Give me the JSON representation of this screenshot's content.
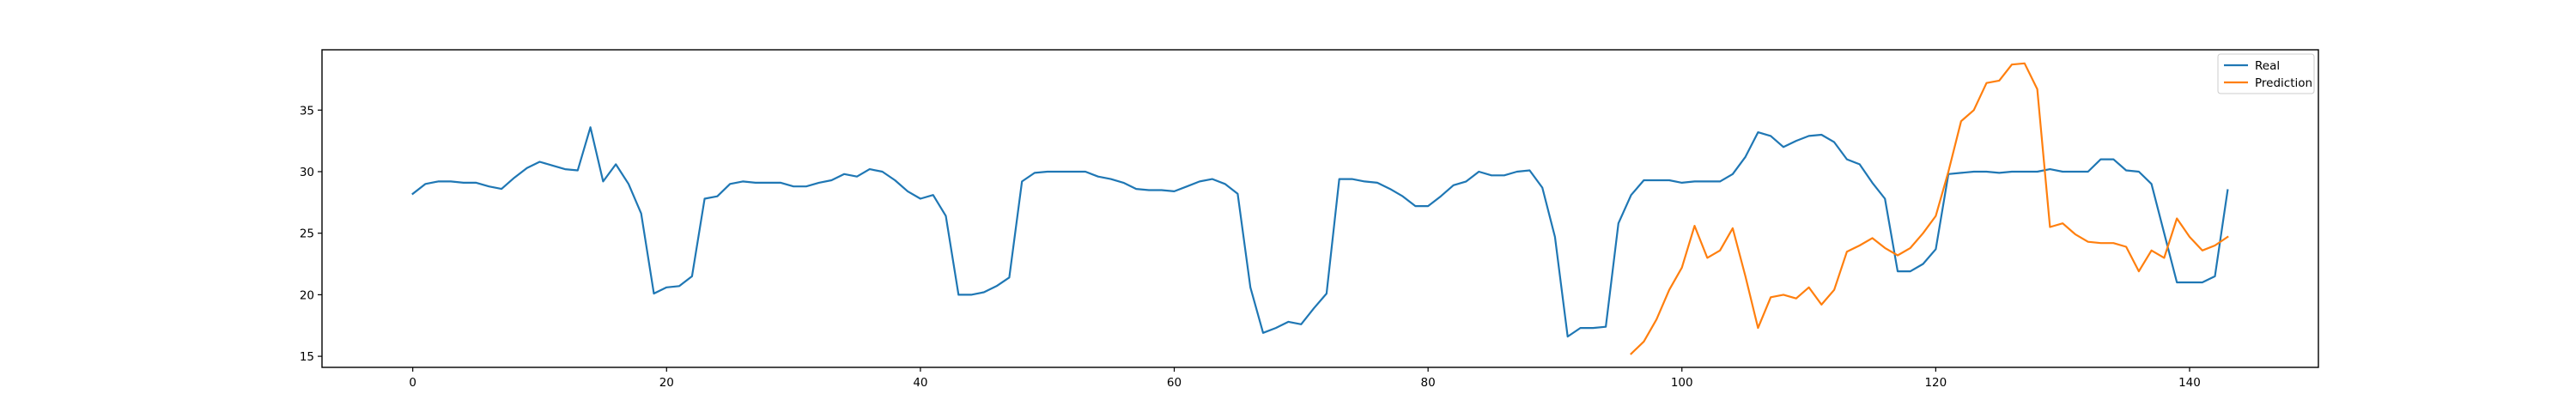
{
  "chart_data": {
    "type": "line",
    "title": "",
    "xlabel": "",
    "ylabel": "",
    "xlim": [
      -7.15,
      150.15
    ],
    "ylim": [
      14.1,
      39.9
    ],
    "xticks": [
      0,
      20,
      40,
      60,
      80,
      100,
      120,
      140
    ],
    "yticks": [
      15,
      20,
      25,
      30,
      35
    ],
    "grid": false,
    "legend_position": "upper right",
    "series": [
      {
        "name": "Real",
        "color": "#1f77b4",
        "x": [
          0,
          1,
          2,
          3,
          4,
          5,
          6,
          7,
          8,
          9,
          10,
          11,
          12,
          13,
          14,
          15,
          16,
          17,
          18,
          19,
          20,
          21,
          22,
          23,
          24,
          25,
          26,
          27,
          28,
          29,
          30,
          31,
          32,
          33,
          34,
          35,
          36,
          37,
          38,
          39,
          40,
          41,
          42,
          43,
          44,
          45,
          46,
          47,
          48,
          49,
          50,
          51,
          52,
          53,
          54,
          55,
          56,
          57,
          58,
          59,
          60,
          61,
          62,
          63,
          64,
          65,
          66,
          67,
          68,
          69,
          70,
          71,
          72,
          73,
          74,
          75,
          76,
          77,
          78,
          79,
          80,
          81,
          82,
          83,
          84,
          85,
          86,
          87,
          88,
          89,
          90,
          91,
          92,
          93,
          94,
          95,
          96,
          97,
          98,
          99,
          100,
          101,
          102,
          103,
          104,
          105,
          106,
          107,
          108,
          109,
          110,
          111,
          112,
          113,
          114,
          115,
          116,
          117,
          118,
          119,
          120,
          121,
          122,
          123,
          124,
          125,
          126,
          127,
          128,
          129,
          130,
          131,
          132,
          133,
          134,
          135,
          136,
          137,
          138,
          139,
          140,
          141,
          142,
          143
        ],
        "values": [
          28.2,
          29.0,
          29.2,
          29.2,
          29.1,
          29.1,
          28.8,
          28.6,
          29.5,
          30.3,
          30.8,
          30.5,
          30.2,
          30.1,
          33.6,
          29.2,
          30.6,
          29.0,
          26.6,
          20.1,
          20.6,
          20.7,
          21.5,
          27.8,
          28.0,
          29.0,
          29.2,
          29.1,
          29.1,
          29.1,
          28.8,
          28.8,
          29.1,
          29.3,
          29.8,
          29.6,
          30.2,
          30.0,
          29.3,
          28.4,
          27.8,
          28.1,
          26.4,
          20.0,
          20.0,
          20.2,
          20.7,
          21.4,
          29.2,
          29.9,
          30.0,
          30.0,
          30.0,
          30.0,
          29.6,
          29.4,
          29.1,
          28.6,
          28.5,
          28.5,
          28.4,
          28.8,
          29.2,
          29.4,
          29.0,
          28.2,
          20.6,
          16.9,
          17.3,
          17.8,
          17.6,
          18.9,
          20.1,
          29.4,
          29.4,
          29.2,
          29.1,
          28.6,
          28.0,
          27.2,
          27.2,
          28.0,
          28.9,
          29.2,
          30.0,
          29.7,
          29.7,
          30.0,
          30.1,
          28.7,
          24.7,
          16.6,
          17.3,
          17.3,
          17.4,
          25.8,
          28.1,
          29.3,
          29.3,
          29.3,
          29.1,
          29.2,
          29.2,
          29.2,
          29.8,
          31.2,
          33.2,
          32.9,
          32.0,
          32.5,
          32.9,
          33.0,
          32.4,
          31.0,
          30.6,
          29.1,
          27.8,
          21.9,
          21.9,
          22.5,
          23.7,
          29.8,
          29.9,
          30.0,
          30.0,
          29.9,
          30.0,
          30.0,
          30.0,
          30.2,
          30.0,
          30.0,
          30.0,
          31.0,
          31.0,
          30.1,
          30.0,
          29.0,
          25.0,
          21.0,
          21.0,
          21.0,
          21.5,
          28.5
        ]
      },
      {
        "name": "Prediction",
        "color": "#ff7f0e",
        "x": [
          96,
          97,
          98,
          99,
          100,
          101,
          102,
          103,
          104,
          105,
          106,
          107,
          108,
          109,
          110,
          111,
          112,
          113,
          114,
          115,
          116,
          117,
          118,
          119,
          120,
          121,
          122,
          123,
          124,
          125,
          126,
          127,
          128,
          129,
          130,
          131,
          132,
          133,
          134,
          135,
          136,
          137,
          138,
          139,
          140,
          141,
          142,
          143
        ],
        "values": [
          15.2,
          16.2,
          18.0,
          20.4,
          22.2,
          25.6,
          23.0,
          23.6,
          25.4,
          21.5,
          17.3,
          19.8,
          20.0,
          19.7,
          20.6,
          19.2,
          20.4,
          23.5,
          24.0,
          24.6,
          23.8,
          23.2,
          23.8,
          25.0,
          26.4,
          30.0,
          34.1,
          35.0,
          37.2,
          37.4,
          38.7,
          38.8,
          36.7,
          25.5,
          25.8,
          24.9,
          24.3,
          24.2,
          24.2,
          23.9,
          21.9,
          23.6,
          23.0,
          26.2,
          24.7,
          23.6,
          24.0,
          24.7
        ]
      }
    ]
  }
}
